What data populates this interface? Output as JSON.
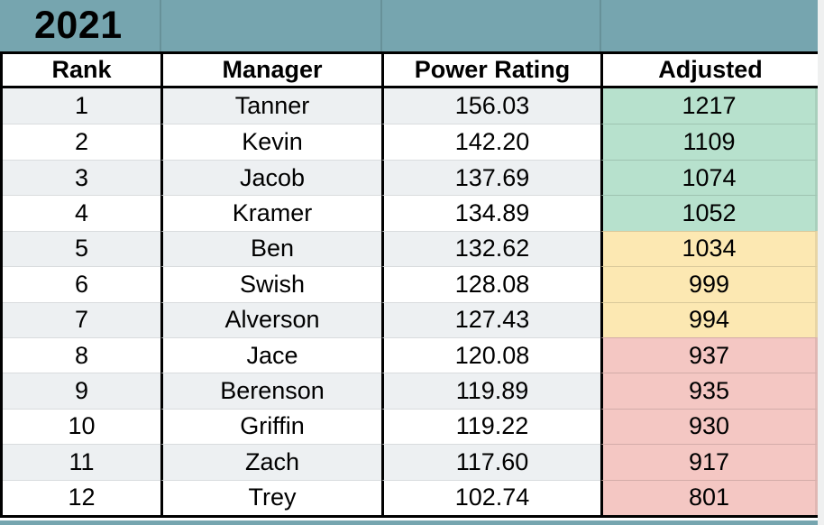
{
  "sheet": {
    "year": "2021",
    "columns": [
      "Rank",
      "Manager",
      "Power Rating",
      "Adjusted"
    ],
    "rows": [
      {
        "rank": "1",
        "manager": "Tanner",
        "power": "156.03",
        "adjusted": "1217",
        "tier": "green"
      },
      {
        "rank": "2",
        "manager": "Kevin",
        "power": "142.20",
        "adjusted": "1109",
        "tier": "green"
      },
      {
        "rank": "3",
        "manager": "Jacob",
        "power": "137.69",
        "adjusted": "1074",
        "tier": "green"
      },
      {
        "rank": "4",
        "manager": "Kramer",
        "power": "134.89",
        "adjusted": "1052",
        "tier": "green"
      },
      {
        "rank": "5",
        "manager": "Ben",
        "power": "132.62",
        "adjusted": "1034",
        "tier": "yellow"
      },
      {
        "rank": "6",
        "manager": "Swish",
        "power": "128.08",
        "adjusted": "999",
        "tier": "yellow"
      },
      {
        "rank": "7",
        "manager": "Alverson",
        "power": "127.43",
        "adjusted": "994",
        "tier": "yellow"
      },
      {
        "rank": "8",
        "manager": "Jace",
        "power": "120.08",
        "adjusted": "937",
        "tier": "red"
      },
      {
        "rank": "9",
        "manager": "Berenson",
        "power": "119.89",
        "adjusted": "935",
        "tier": "red"
      },
      {
        "rank": "10",
        "manager": "Griffin",
        "power": "119.22",
        "adjusted": "930",
        "tier": "red"
      },
      {
        "rank": "11",
        "manager": "Zach",
        "power": "117.60",
        "adjusted": "917",
        "tier": "red"
      },
      {
        "rank": "12",
        "manager": "Trey",
        "power": "102.74",
        "adjusted": "801",
        "tier": "red"
      }
    ],
    "colors": {
      "band": "#76a5af",
      "zebra": "#edf0f2",
      "green": "#b7e1cd",
      "yellow": "#fce8b2",
      "red": "#f4c7c3"
    }
  }
}
